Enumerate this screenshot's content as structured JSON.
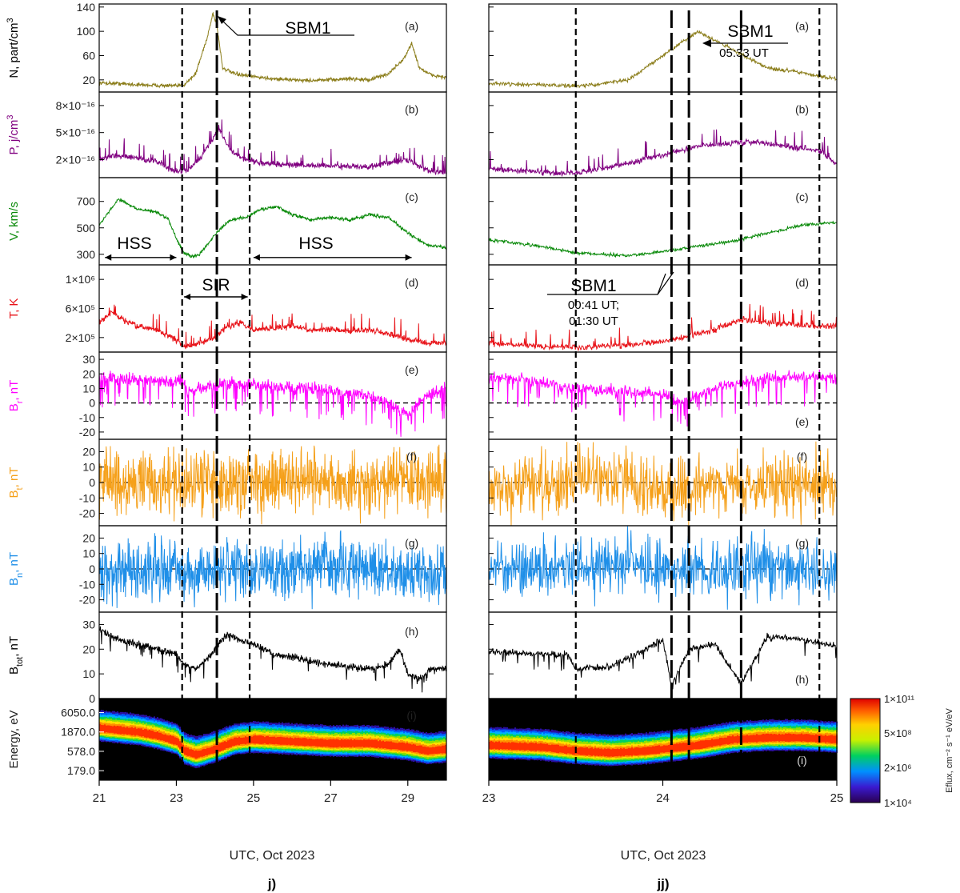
{
  "chart_data": [
    {
      "type": "line",
      "panel_label": "j)",
      "xlabel": "UTC, Oct 2023",
      "x_ticks": [
        "21",
        "23",
        "25",
        "27",
        "29"
      ],
      "xlim": [
        21,
        30
      ],
      "markers_x": [
        23.15,
        24.05,
        24.9
      ],
      "marker_styles": [
        "short",
        "long",
        "short"
      ],
      "annotations": [
        {
          "text": "SBM1",
          "panel": 0
        },
        {
          "text": "HSS",
          "panel": 2
        },
        {
          "text": "HSS",
          "panel": 2
        },
        {
          "text": "SIR",
          "panel": 3
        }
      ],
      "series": [
        {
          "key": "N",
          "panel_tag": "(a)",
          "color": "#8b7d1a",
          "ylim": [
            0,
            145
          ],
          "tick_values": [
            20,
            60,
            100,
            140
          ],
          "tick_labels": [
            "20",
            "60",
            "100",
            "140"
          ],
          "x": [
            21,
            21.5,
            22,
            22.5,
            23,
            23.2,
            23.5,
            23.8,
            23.95,
            24.05,
            24.2,
            24.5,
            24.9,
            25.5,
            26,
            26.5,
            27,
            27.5,
            28,
            28.5,
            28.9,
            29.1,
            29.3,
            29.6,
            30
          ],
          "values": [
            15,
            14,
            12,
            11,
            10,
            12,
            30,
            90,
            130,
            110,
            40,
            30,
            26,
            22,
            20,
            19,
            20,
            22,
            20,
            30,
            55,
            80,
            40,
            28,
            24
          ]
        },
        {
          "key": "P",
          "panel_tag": "(b)",
          "color": "#800080",
          "ylim": [
            0,
            9.5
          ],
          "tick_values": [
            2,
            5,
            8
          ],
          "tick_labels": [
            "2×10⁻¹⁶",
            "5×10⁻¹⁶",
            "8×10⁻¹⁶"
          ],
          "x": [
            21,
            21.5,
            22,
            22.5,
            22.8,
            23,
            23.3,
            23.6,
            23.9,
            24.1,
            24.4,
            24.8,
            25.2,
            26,
            27,
            28,
            28.5,
            29,
            29.5,
            30
          ],
          "values": [
            2.0,
            2.5,
            2.1,
            1.8,
            1.0,
            0.6,
            0.8,
            2.0,
            4.0,
            5.5,
            3.0,
            2.0,
            1.6,
            1.4,
            1.3,
            1.2,
            1.6,
            2.0,
            0.8,
            0.6
          ]
        },
        {
          "key": "V",
          "panel_tag": "(c)",
          "color": "#0a8a0a",
          "ylim": [
            220,
            880
          ],
          "tick_values": [
            300,
            500,
            700
          ],
          "tick_labels": [
            "300",
            "500",
            "700"
          ],
          "x": [
            21,
            21.2,
            21.5,
            22,
            22.5,
            22.8,
            23,
            23.2,
            23.4,
            23.6,
            24,
            24.4,
            24.8,
            25.2,
            25.6,
            26,
            26.5,
            27,
            27.5,
            28,
            28.5,
            29,
            29.5,
            30
          ],
          "values": [
            520,
            600,
            720,
            640,
            620,
            560,
            420,
            310,
            280,
            300,
            450,
            560,
            580,
            640,
            660,
            600,
            560,
            580,
            560,
            600,
            580,
            460,
            370,
            350
          ]
        },
        {
          "key": "T",
          "panel_tag": "(d)",
          "color": "#e8141a",
          "ylim": [
            0,
            1.2
          ],
          "tick_values": [
            0.2,
            0.6,
            1.0
          ],
          "tick_labels": [
            "2×10⁵",
            "6×10⁵",
            "1×10⁶"
          ],
          "x": [
            21,
            21.3,
            21.6,
            22,
            22.5,
            22.9,
            23.2,
            23.6,
            24,
            24.3,
            24.7,
            25,
            25.5,
            26,
            26.5,
            27,
            27.5,
            28,
            28.5,
            29,
            29.5,
            30
          ],
          "values": [
            0.4,
            0.55,
            0.45,
            0.35,
            0.3,
            0.2,
            0.08,
            0.12,
            0.2,
            0.35,
            0.4,
            0.3,
            0.33,
            0.36,
            0.3,
            0.32,
            0.28,
            0.3,
            0.25,
            0.18,
            0.12,
            0.12
          ]
        },
        {
          "key": "Br",
          "panel_tag": "(e)",
          "color": "#ff00ff",
          "ylim": [
            -25,
            35
          ],
          "tick_values": [
            -20,
            -10,
            0,
            10,
            20,
            30
          ],
          "tick_labels": [
            "-20",
            "-10",
            "0",
            "10",
            "20",
            "30"
          ],
          "x": [
            21,
            22,
            23,
            23.15,
            23.3,
            24,
            24.5,
            25,
            26,
            27,
            28,
            28.5,
            29,
            29.5,
            30
          ],
          "values": [
            18,
            16,
            15,
            17,
            8,
            12,
            14,
            12,
            10,
            9,
            5,
            0,
            -8,
            5,
            10
          ]
        },
        {
          "key": "Bt",
          "panel_tag": "(f)",
          "color": "#f5a01a",
          "ylim": [
            -28,
            28
          ],
          "tick_values": [
            -20,
            -10,
            0,
            10,
            20
          ],
          "tick_labels": [
            "-20",
            "-10",
            "0",
            "10",
            "20"
          ],
          "x": [
            21,
            22,
            23,
            23.2,
            23.5,
            24,
            24.5,
            25,
            26,
            27,
            28,
            29,
            29.5,
            30
          ],
          "values": [
            0,
            2,
            -2,
            -3,
            0,
            2,
            -2,
            0,
            1,
            -1,
            0,
            2,
            0,
            1
          ]
        },
        {
          "key": "Bn",
          "panel_tag": "(g)",
          "color": "#1f8fe8",
          "ylim": [
            -28,
            28
          ],
          "tick_values": [
            -20,
            -10,
            0,
            10,
            20
          ],
          "tick_labels": [
            "-20",
            "-10",
            "0",
            "10",
            "20"
          ],
          "x": [
            21,
            22,
            23,
            23.2,
            23.5,
            24,
            24.5,
            25,
            26,
            27,
            28,
            29,
            29.5,
            30
          ],
          "values": [
            0,
            -2,
            0,
            -2,
            -3,
            0,
            1,
            -1,
            0,
            1,
            0,
            -1,
            -2,
            -3
          ]
        },
        {
          "key": "Btot",
          "panel_tag": "(h)",
          "color": "#000000",
          "ylim": [
            0,
            35
          ],
          "tick_values": [
            0,
            10,
            20,
            30
          ],
          "tick_labels": [
            "0",
            "10",
            "20",
            "30"
          ],
          "x": [
            21,
            21.5,
            22,
            22.5,
            23,
            23.2,
            23.5,
            23.8,
            24,
            24.3,
            24.6,
            25,
            25.5,
            26,
            26.5,
            27,
            27.5,
            28,
            28.5,
            28.8,
            29,
            29.3,
            29.6,
            30
          ],
          "values": [
            28,
            24,
            22,
            20,
            18,
            14,
            12,
            16,
            20,
            26,
            24,
            22,
            18,
            17,
            15,
            14,
            13,
            12,
            14,
            20,
            10,
            8,
            12,
            12
          ]
        }
      ],
      "spectrogram": {
        "panel_tag": "(i)",
        "ylabel": "Energy, eV",
        "tick_labels": [
          "179.0",
          "578.0",
          "1870.0",
          "6050.0"
        ],
        "ylog": [
          2.0,
          4.15
        ],
        "x": [
          21,
          21.5,
          22,
          22.5,
          23,
          23.2,
          23.5,
          24,
          24.5,
          25,
          26,
          27,
          28,
          28.5,
          29,
          29.5,
          30
        ],
        "peak_log": [
          3.35,
          3.3,
          3.25,
          3.15,
          3.0,
          2.75,
          2.65,
          2.8,
          3.0,
          3.05,
          3.0,
          2.95,
          2.95,
          2.9,
          2.85,
          2.75,
          2.8
        ]
      }
    },
    {
      "type": "line",
      "panel_label": "jj)",
      "xlabel": "UTC, Oct 2023",
      "x_ticks": [
        "23",
        "24",
        "25"
      ],
      "xlim": [
        23,
        25
      ],
      "markers_x": [
        23.5,
        24.05,
        24.15,
        24.45,
        24.9
      ],
      "marker_styles": [
        "short",
        "long",
        "long",
        "long",
        "short"
      ],
      "annotations": [
        {
          "text": "SBM1",
          "panel": 0
        },
        {
          "text": "05:33 UT",
          "panel": 0
        },
        {
          "text": "SBM1",
          "panel": 3
        },
        {
          "text": "00:41 UT;",
          "panel": 3
        },
        {
          "text": "01:30 UT",
          "panel": 3
        }
      ],
      "series": [
        {
          "key": "N",
          "panel_tag": "(a)",
          "color": "#8b7d1a",
          "ylim": [
            0,
            145
          ],
          "x": [
            23,
            23.3,
            23.5,
            23.6,
            23.8,
            24.0,
            24.2,
            24.4,
            24.6,
            24.8,
            24.9,
            25
          ],
          "values": [
            14,
            12,
            10,
            12,
            20,
            60,
            100,
            70,
            40,
            32,
            26,
            22
          ]
        },
        {
          "key": "P",
          "panel_tag": "(b)",
          "color": "#800080",
          "ylim": [
            0,
            9.5
          ],
          "x": [
            23,
            23.3,
            23.5,
            23.7,
            24.0,
            24.2,
            24.5,
            24.7,
            24.9,
            25
          ],
          "values": [
            1.0,
            0.6,
            0.5,
            1.2,
            2.5,
            3.5,
            4.0,
            3.5,
            3.0,
            1.5
          ]
        },
        {
          "key": "V",
          "panel_tag": "(c)",
          "color": "#0a8a0a",
          "ylim": [
            220,
            880
          ],
          "x": [
            23,
            23.3,
            23.5,
            23.8,
            24.0,
            24.4,
            24.8,
            25
          ],
          "values": [
            410,
            360,
            310,
            290,
            320,
            400,
            520,
            540
          ]
        },
        {
          "key": "T",
          "panel_tag": "(d)",
          "color": "#e8141a",
          "ylim": [
            0,
            1.2
          ],
          "x": [
            23,
            23.3,
            23.5,
            23.8,
            24.0,
            24.3,
            24.45,
            24.6,
            24.9,
            25
          ],
          "values": [
            0.12,
            0.08,
            0.06,
            0.1,
            0.15,
            0.3,
            0.45,
            0.4,
            0.35,
            0.35
          ]
        },
        {
          "key": "Br",
          "panel_tag": "(e)",
          "color": "#ff00ff",
          "ylim": [
            -25,
            35
          ],
          "x": [
            23,
            23.2,
            23.5,
            23.8,
            24.0,
            24.1,
            24.3,
            24.6,
            24.9,
            25
          ],
          "values": [
            18,
            17,
            10,
            8,
            6,
            0,
            10,
            18,
            18,
            17
          ]
        },
        {
          "key": "Bt",
          "panel_tag": "(f)",
          "color": "#f5a01a",
          "ylim": [
            -28,
            28
          ],
          "x": [
            23,
            23.3,
            23.5,
            23.7,
            24.0,
            24.3,
            24.6,
            24.9,
            25
          ],
          "values": [
            -3,
            -2,
            0,
            5,
            -5,
            -3,
            0,
            -2,
            -5
          ]
        },
        {
          "key": "Bn",
          "panel_tag": "(g)",
          "color": "#1f8fe8",
          "ylim": [
            -28,
            28
          ],
          "x": [
            23,
            23.3,
            23.5,
            23.8,
            24.0,
            24.3,
            24.6,
            24.9,
            25
          ],
          "values": [
            0,
            0,
            -2,
            2,
            0,
            -2,
            2,
            0,
            -5
          ]
        },
        {
          "key": "Btot",
          "panel_tag": "(h)",
          "color": "#000000",
          "ylim": [
            0,
            35
          ],
          "x": [
            23,
            23.3,
            23.45,
            23.5,
            23.7,
            23.9,
            24.0,
            24.05,
            24.15,
            24.3,
            24.45,
            24.6,
            24.8,
            25
          ],
          "values": [
            19,
            18,
            18,
            12,
            13,
            20,
            24,
            5,
            20,
            22,
            6,
            25,
            24,
            21
          ]
        }
      ],
      "spectrogram": {
        "panel_tag": "(i)",
        "x": [
          23,
          23.3,
          23.5,
          23.7,
          23.9,
          24.0,
          24.2,
          24.4,
          24.6,
          24.8,
          25
        ],
        "peak_log": [
          2.9,
          2.85,
          2.75,
          2.7,
          2.75,
          2.8,
          2.9,
          3.05,
          3.1,
          3.1,
          3.05
        ]
      }
    }
  ],
  "ylabels": [
    {
      "main": "N, part/cm",
      "sup": "3",
      "sub": "",
      "color": "#000000"
    },
    {
      "main": "P, j/cm",
      "sup": "3",
      "sub": "",
      "color": "#800080"
    },
    {
      "main": "V, km/s",
      "sup": "",
      "sub": "",
      "color": "#0a8a0a"
    },
    {
      "main": "T, K",
      "sup": "",
      "sub": "",
      "color": "#e8141a"
    },
    {
      "main": "B",
      "sup": "",
      "sub": "r",
      "tail": ", nT",
      "color": "#ff00ff"
    },
    {
      "main": "B",
      "sup": "",
      "sub": "t",
      "tail": ", nT",
      "color": "#f5a01a"
    },
    {
      "main": "B",
      "sup": "",
      "sub": "n",
      "tail": ", nT",
      "color": "#1f8fe8"
    },
    {
      "main": "B",
      "sup": "",
      "sub": "tot",
      "tail": ", nT",
      "color": "#000000"
    }
  ],
  "colorbar": {
    "label": "Eflux, cm⁻² s⁻¹ eV/eV",
    "tick_labels": [
      "1×10⁴",
      "2×10⁶",
      "5×10⁸",
      "1×10¹¹"
    ]
  }
}
